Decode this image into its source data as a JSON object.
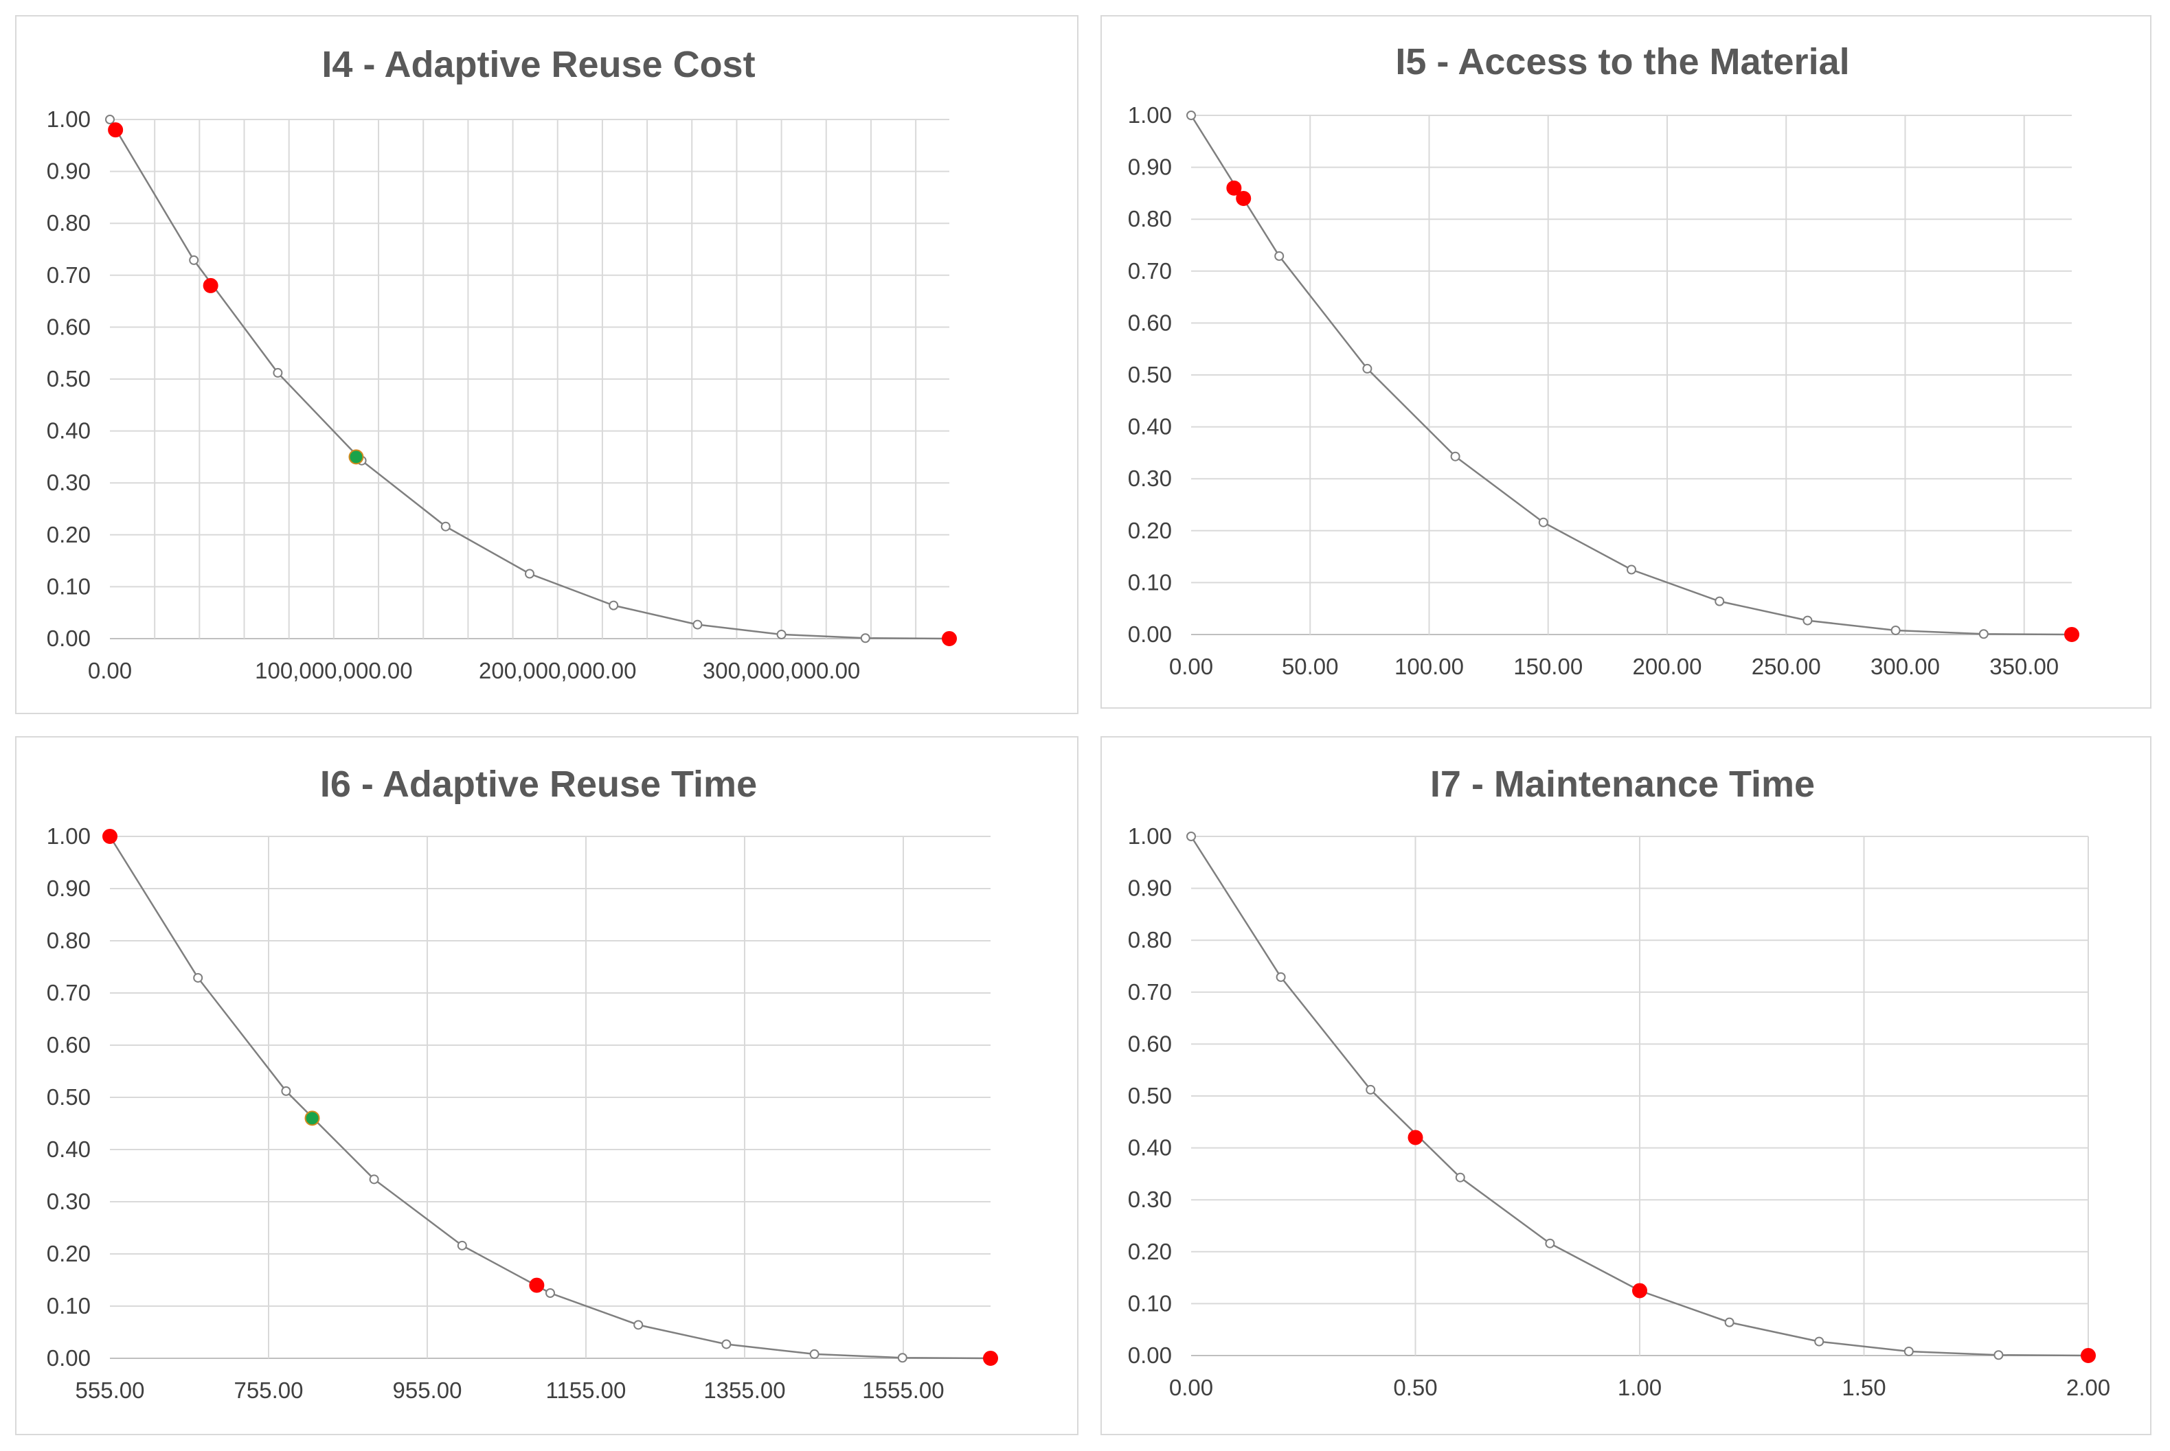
{
  "colors": {
    "grid": "#d9d9d9",
    "axis": "#bfbfbf",
    "line": "#7f7f7f",
    "marker_fill": "#ffffff",
    "highlight_red": "#ff0000",
    "highlight_green": "#1aa34a",
    "title": "#595959",
    "tick_text": "#404040"
  },
  "chart_data": [
    {
      "id": "i4",
      "type": "scatter",
      "title": "I4 - Adaptive Reuse Cost",
      "xlabel": "",
      "ylabel": "",
      "xlim": [
        0,
        375000000
      ],
      "ylim": [
        0,
        1
      ],
      "xticks": [
        0,
        100000000,
        200000000,
        300000000
      ],
      "xtick_labels": [
        "0.00",
        "100,000,000.00",
        "200,000,000.00",
        "300,000,000.00"
      ],
      "xgrid": [
        20000000,
        40000000,
        60000000,
        80000000,
        100000000,
        120000000,
        140000000,
        160000000,
        180000000,
        200000000,
        220000000,
        240000000,
        260000000,
        280000000,
        300000000,
        320000000,
        340000000,
        360000000
      ],
      "yticks": [
        0,
        0.1,
        0.2,
        0.3,
        0.4,
        0.5,
        0.6,
        0.7,
        0.8,
        0.9,
        1.0
      ],
      "ytick_labels": [
        "0.00",
        "0.10",
        "0.20",
        "0.30",
        "0.40",
        "0.50",
        "0.60",
        "0.70",
        "0.80",
        "0.90",
        "1.00"
      ],
      "grid": true,
      "curve": {
        "x": [
          0,
          37500000,
          75000000,
          112500000,
          150000000,
          187500000,
          225000000,
          262500000,
          300000000,
          337500000,
          375000000
        ],
        "y": [
          1.0,
          0.729,
          0.512,
          0.343,
          0.216,
          0.125,
          0.064,
          0.027,
          0.008,
          0.001,
          0.0
        ]
      },
      "highlights": [
        {
          "x": 2500000,
          "y": 0.98,
          "color": "red"
        },
        {
          "x": 45000000,
          "y": 0.68,
          "color": "red"
        },
        {
          "x": 110000000,
          "y": 0.35,
          "color": "green"
        },
        {
          "x": 375000000,
          "y": 0.0,
          "color": "red"
        }
      ]
    },
    {
      "id": "i5",
      "type": "scatter",
      "title": "I5 - Access to the Material",
      "xlabel": "",
      "ylabel": "",
      "xlim": [
        0,
        370
      ],
      "ylim": [
        0,
        1
      ],
      "xticks": [
        0,
        50,
        100,
        150,
        200,
        250,
        300,
        350
      ],
      "xtick_labels": [
        "0.00",
        "50.00",
        "100.00",
        "150.00",
        "200.00",
        "250.00",
        "300.00",
        "350.00"
      ],
      "xgrid": [
        50,
        100,
        150,
        200,
        250,
        300,
        350
      ],
      "yticks": [
        0,
        0.1,
        0.2,
        0.3,
        0.4,
        0.5,
        0.6,
        0.7,
        0.8,
        0.9,
        1.0
      ],
      "ytick_labels": [
        "0.00",
        "0.10",
        "0.20",
        "0.30",
        "0.40",
        "0.50",
        "0.60",
        "0.70",
        "0.80",
        "0.90",
        "1.00"
      ],
      "grid": true,
      "curve": {
        "x": [
          0,
          37,
          74,
          111,
          148,
          185,
          222,
          259,
          296,
          333,
          370
        ],
        "y": [
          1.0,
          0.729,
          0.512,
          0.343,
          0.216,
          0.125,
          0.064,
          0.027,
          0.008,
          0.001,
          0.0
        ]
      },
      "highlights": [
        {
          "x": 18,
          "y": 0.86,
          "color": "red"
        },
        {
          "x": 22,
          "y": 0.84,
          "color": "red"
        },
        {
          "x": 370,
          "y": 0.0,
          "color": "red"
        }
      ]
    },
    {
      "id": "i6",
      "type": "scatter",
      "title": "I6 - Adaptive Reuse Time",
      "xlabel": "",
      "ylabel": "",
      "xlim": [
        555,
        1665
      ],
      "ylim": [
        0,
        1
      ],
      "xticks": [
        555,
        755,
        955,
        1155,
        1355,
        1555
      ],
      "xtick_labels": [
        "555.00",
        "755.00",
        "955.00",
        "1155.00",
        "1355.00",
        "1555.00"
      ],
      "xgrid": [
        755,
        955,
        1155,
        1355,
        1555
      ],
      "yticks": [
        0,
        0.1,
        0.2,
        0.3,
        0.4,
        0.5,
        0.6,
        0.7,
        0.8,
        0.9,
        1.0
      ],
      "ytick_labels": [
        "0.00",
        "0.10",
        "0.20",
        "0.30",
        "0.40",
        "0.50",
        "0.60",
        "0.70",
        "0.80",
        "0.90",
        "1.00"
      ],
      "grid": true,
      "curve": {
        "x": [
          555,
          666,
          777,
          888,
          999,
          1110,
          1221,
          1332,
          1443,
          1554,
          1665
        ],
        "y": [
          1.0,
          0.729,
          0.512,
          0.343,
          0.216,
          0.125,
          0.064,
          0.027,
          0.008,
          0.001,
          0.0
        ]
      },
      "highlights": [
        {
          "x": 555,
          "y": 1.0,
          "color": "red"
        },
        {
          "x": 810,
          "y": 0.46,
          "color": "green"
        },
        {
          "x": 1093,
          "y": 0.14,
          "color": "red"
        },
        {
          "x": 1665,
          "y": 0.0,
          "color": "red"
        }
      ]
    },
    {
      "id": "i7",
      "type": "scatter",
      "title": "I7 - Maintenance Time",
      "xlabel": "",
      "ylabel": "",
      "xlim": [
        0,
        2
      ],
      "ylim": [
        0,
        1
      ],
      "xticks": [
        0,
        0.5,
        1.0,
        1.5,
        2.0
      ],
      "xtick_labels": [
        "0.00",
        "0.50",
        "1.00",
        "1.50",
        "2.00"
      ],
      "xgrid": [
        0.5,
        1.0,
        1.5,
        2.0
      ],
      "yticks": [
        0,
        0.1,
        0.2,
        0.3,
        0.4,
        0.5,
        0.6,
        0.7,
        0.8,
        0.9,
        1.0
      ],
      "ytick_labels": [
        "0.00",
        "0.10",
        "0.20",
        "0.30",
        "0.40",
        "0.50",
        "0.60",
        "0.70",
        "0.80",
        "0.90",
        "1.00"
      ],
      "grid": true,
      "curve": {
        "x": [
          0,
          0.2,
          0.4,
          0.6,
          0.8,
          1.0,
          1.2,
          1.4,
          1.6,
          1.8,
          2.0
        ],
        "y": [
          1.0,
          0.729,
          0.512,
          0.343,
          0.216,
          0.125,
          0.064,
          0.027,
          0.008,
          0.001,
          0.0
        ]
      },
      "highlights": [
        {
          "x": 0.5,
          "y": 0.42,
          "color": "red"
        },
        {
          "x": 1.0,
          "y": 0.125,
          "color": "red"
        },
        {
          "x": 2.0,
          "y": 0.0,
          "color": "red"
        }
      ]
    }
  ]
}
